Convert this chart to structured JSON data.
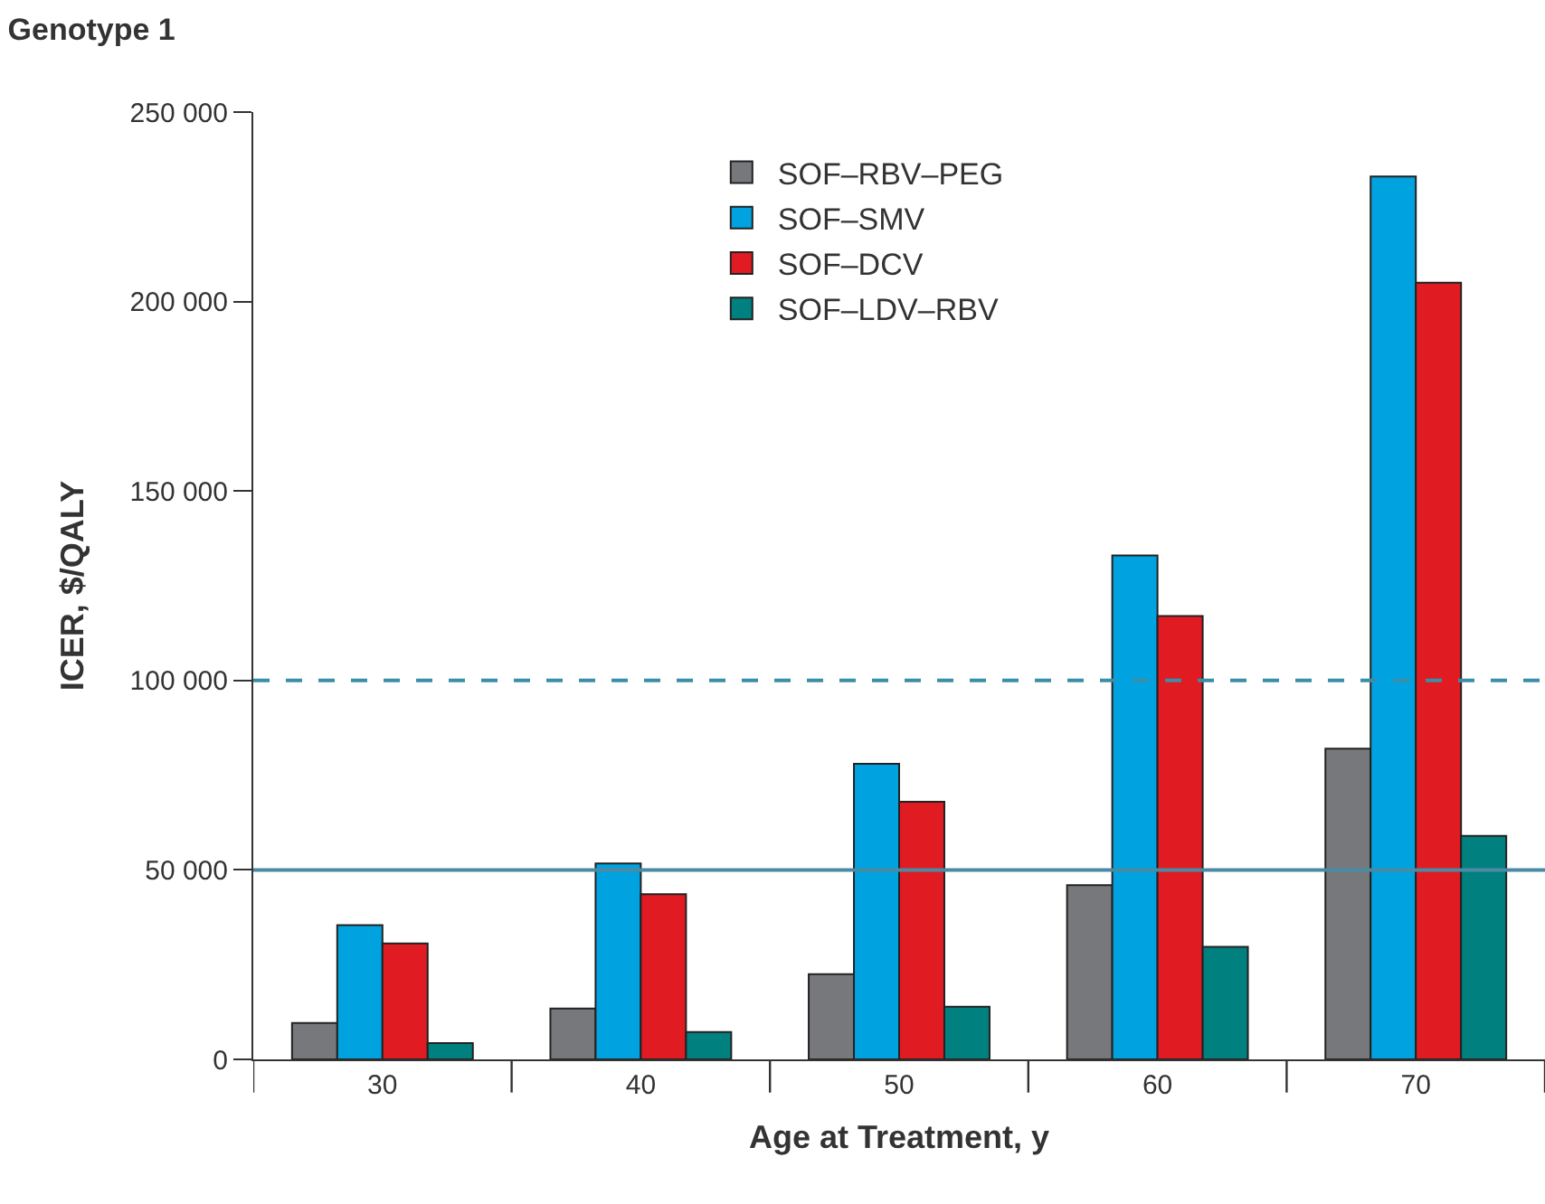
{
  "chart_data": {
    "type": "bar",
    "title": "Genotype 1",
    "xlabel": "Age at Treatment, y",
    "ylabel": "ICER, $/QALY",
    "categories": [
      "30",
      "40",
      "50",
      "60",
      "70"
    ],
    "series": [
      {
        "name": "SOF–RBV–PEG",
        "color": "#77787b",
        "values": [
          9600,
          13400,
          22500,
          46000,
          82000
        ]
      },
      {
        "name": "SOF–SMV",
        "color": "#00a3e0",
        "values": [
          35400,
          51700,
          78000,
          133000,
          233000
        ]
      },
      {
        "name": "SOF–DCV",
        "color": "#e11b22",
        "values": [
          30600,
          43600,
          68000,
          117000,
          205000
        ]
      },
      {
        "name": "SOF–LDV–RBV",
        "color": "#00807f",
        "values": [
          4300,
          7200,
          13900,
          29700,
          59000
        ]
      }
    ],
    "ylim": [
      0,
      250000
    ],
    "yticks": [
      {
        "value": 0,
        "label": "0"
      },
      {
        "value": 50000,
        "label": "50 000"
      },
      {
        "value": 100000,
        "label": "100 000"
      },
      {
        "value": 150000,
        "label": "150 000"
      },
      {
        "value": 200000,
        "label": "200 000"
      },
      {
        "value": 250000,
        "label": "250 000"
      }
    ],
    "ref_lines": [
      {
        "axis": "y",
        "value": 100000,
        "color": "#3a8ea8",
        "line_style": "dashed"
      },
      {
        "axis": "y",
        "value": 50000,
        "color": "#4a8aa3",
        "line_style": "solid"
      }
    ],
    "grid": false,
    "legend": "top"
  }
}
